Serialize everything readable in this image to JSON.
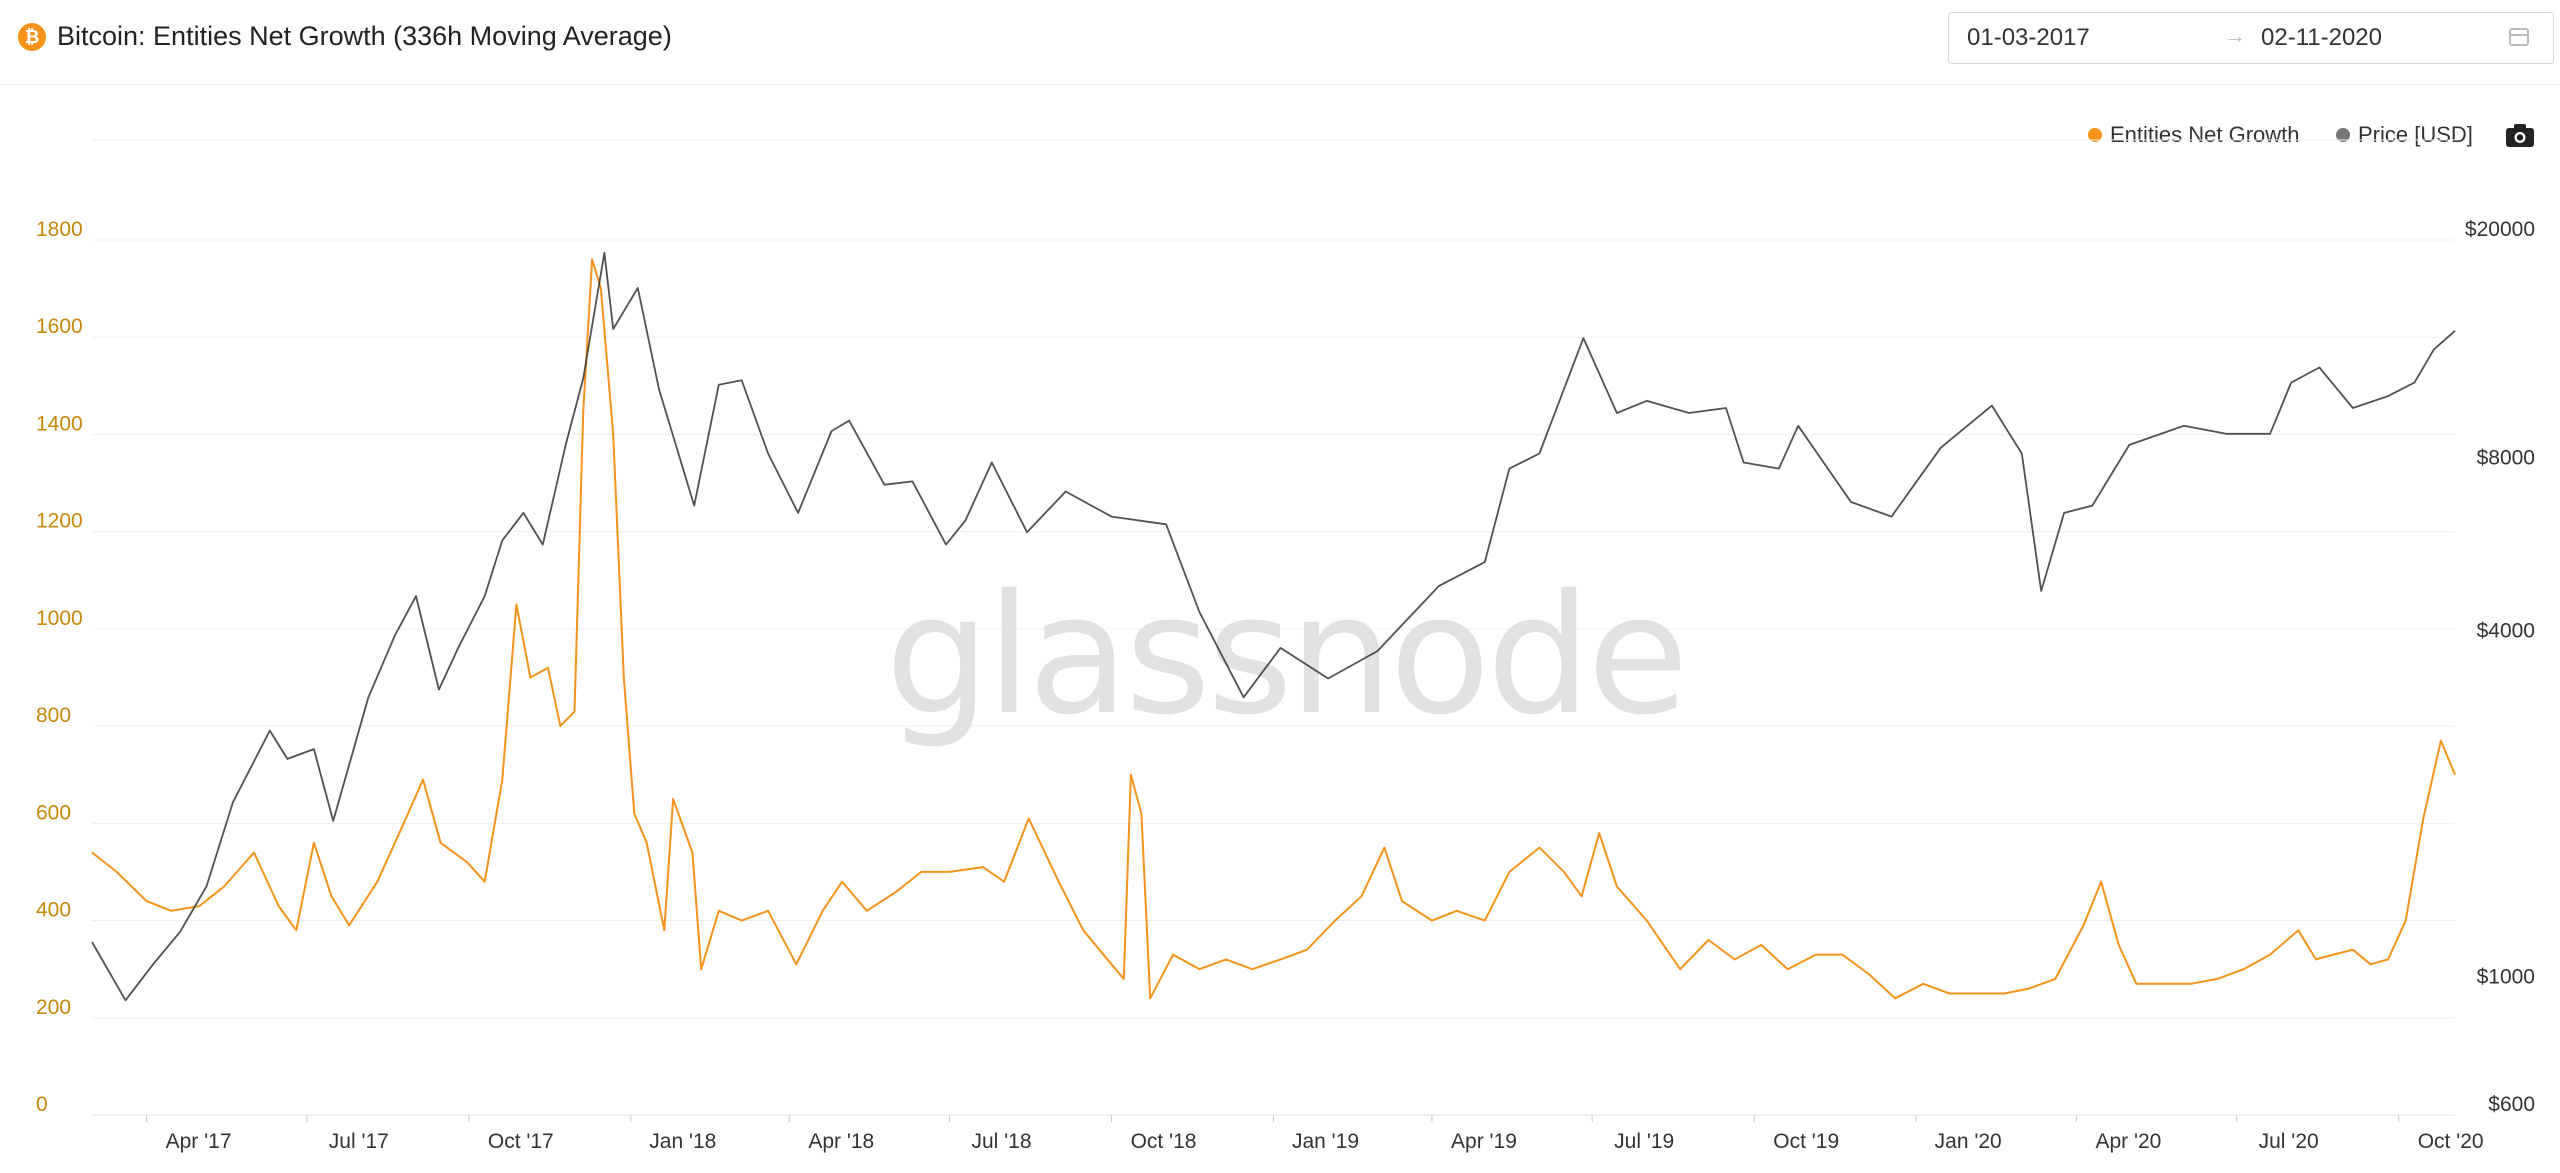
{
  "header": {
    "title": "Bitcoin: Entities Net Growth (336h Moving Average)",
    "coin_icon": "bitcoin-icon",
    "date_start": "01-03-2017",
    "date_separator": "→",
    "date_end": "02-11-2020",
    "calendar_icon": "calendar-icon"
  },
  "legend": {
    "items": [
      {
        "label": "Entities Net Growth",
        "color": "#f7931a"
      },
      {
        "label": "Price [USD]",
        "color": "#777777"
      }
    ],
    "camera_icon": "camera-icon"
  },
  "watermark": "glassnode",
  "chart_data": {
    "type": "line",
    "title": "Bitcoin: Entities Net Growth (336h Moving Average)",
    "x_ticks": [
      "Apr '17",
      "Jul '17",
      "Oct '17",
      "Jan '18",
      "Apr '18",
      "Jul '18",
      "Oct '18",
      "Jan '19",
      "Apr '19",
      "Jul '19",
      "Oct '19",
      "Jan '20",
      "Apr '20",
      "Jul '20",
      "Oct '20"
    ],
    "x_tick_dates": [
      "2017-04-01",
      "2017-07-01",
      "2017-10-01",
      "2018-01-01",
      "2018-04-01",
      "2018-07-01",
      "2018-10-01",
      "2019-01-01",
      "2019-04-01",
      "2019-07-01",
      "2019-10-01",
      "2020-01-01",
      "2020-04-01",
      "2020-07-01",
      "2020-10-01"
    ],
    "xlim": [
      "2017-03-01",
      "2020-11-02"
    ],
    "y_left": {
      "ticks": [
        0,
        200,
        400,
        600,
        800,
        1000,
        1200,
        1400,
        1600,
        1800
      ],
      "ylim": [
        0,
        1800
      ],
      "color": "#c8860a"
    },
    "y_right": {
      "scale": "log",
      "ticks": [
        600,
        1000,
        4000,
        8000,
        20000
      ],
      "tick_labels": [
        "$600",
        "$1000",
        "$4000",
        "$8000",
        "$20000"
      ],
      "ylim": [
        600,
        20000
      ]
    },
    "grid": true,
    "legend_position": "top-right",
    "series": [
      {
        "name": "Entities Net Growth",
        "axis": "left",
        "color": "#f7931a",
        "points": [
          [
            "2017-03-01",
            540
          ],
          [
            "2017-03-15",
            500
          ],
          [
            "2017-04-01",
            440
          ],
          [
            "2017-04-15",
            420
          ],
          [
            "2017-05-01",
            430
          ],
          [
            "2017-05-15",
            470
          ],
          [
            "2017-06-01",
            540
          ],
          [
            "2017-06-15",
            430
          ],
          [
            "2017-06-25",
            380
          ],
          [
            "2017-07-05",
            560
          ],
          [
            "2017-07-15",
            450
          ],
          [
            "2017-07-25",
            390
          ],
          [
            "2017-08-10",
            480
          ],
          [
            "2017-08-25",
            600
          ],
          [
            "2017-09-05",
            690
          ],
          [
            "2017-09-15",
            560
          ],
          [
            "2017-09-30",
            520
          ],
          [
            "2017-10-10",
            480
          ],
          [
            "2017-10-20",
            690
          ],
          [
            "2017-10-28",
            1050
          ],
          [
            "2017-11-05",
            900
          ],
          [
            "2017-11-15",
            920
          ],
          [
            "2017-11-22",
            800
          ],
          [
            "2017-11-30",
            830
          ],
          [
            "2017-12-05",
            1450
          ],
          [
            "2017-12-10",
            1760
          ],
          [
            "2017-12-15",
            1700
          ],
          [
            "2017-12-22",
            1400
          ],
          [
            "2017-12-28",
            900
          ],
          [
            "2018-01-03",
            620
          ],
          [
            "2018-01-10",
            560
          ],
          [
            "2018-01-20",
            380
          ],
          [
            "2018-01-25",
            650
          ],
          [
            "2018-02-05",
            540
          ],
          [
            "2018-02-10",
            300
          ],
          [
            "2018-02-20",
            420
          ],
          [
            "2018-03-05",
            400
          ],
          [
            "2018-03-20",
            420
          ],
          [
            "2018-04-05",
            310
          ],
          [
            "2018-04-20",
            420
          ],
          [
            "2018-05-01",
            480
          ],
          [
            "2018-05-15",
            420
          ],
          [
            "2018-06-01",
            460
          ],
          [
            "2018-06-15",
            500
          ],
          [
            "2018-07-01",
            500
          ],
          [
            "2018-07-20",
            510
          ],
          [
            "2018-08-01",
            480
          ],
          [
            "2018-08-15",
            610
          ],
          [
            "2018-09-01",
            480
          ],
          [
            "2018-09-15",
            380
          ],
          [
            "2018-10-01",
            310
          ],
          [
            "2018-10-08",
            280
          ],
          [
            "2018-10-12",
            700
          ],
          [
            "2018-10-18",
            620
          ],
          [
            "2018-10-23",
            240
          ],
          [
            "2018-11-05",
            330
          ],
          [
            "2018-11-20",
            300
          ],
          [
            "2018-12-05",
            320
          ],
          [
            "2018-12-20",
            300
          ],
          [
            "2019-01-05",
            320
          ],
          [
            "2019-01-20",
            340
          ],
          [
            "2019-02-05",
            400
          ],
          [
            "2019-02-20",
            450
          ],
          [
            "2019-03-05",
            550
          ],
          [
            "2019-03-15",
            440
          ],
          [
            "2019-04-01",
            400
          ],
          [
            "2019-04-15",
            420
          ],
          [
            "2019-05-01",
            400
          ],
          [
            "2019-05-15",
            500
          ],
          [
            "2019-06-01",
            550
          ],
          [
            "2019-06-15",
            500
          ],
          [
            "2019-06-25",
            450
          ],
          [
            "2019-07-05",
            580
          ],
          [
            "2019-07-15",
            470
          ],
          [
            "2019-08-01",
            400
          ],
          [
            "2019-08-20",
            300
          ],
          [
            "2019-09-05",
            360
          ],
          [
            "2019-09-20",
            320
          ],
          [
            "2019-10-05",
            350
          ],
          [
            "2019-10-20",
            300
          ],
          [
            "2019-11-05",
            330
          ],
          [
            "2019-11-20",
            330
          ],
          [
            "2019-12-05",
            290
          ],
          [
            "2019-12-20",
            240
          ],
          [
            "2020-01-05",
            270
          ],
          [
            "2020-01-20",
            250
          ],
          [
            "2020-02-05",
            250
          ],
          [
            "2020-02-20",
            250
          ],
          [
            "2020-03-05",
            260
          ],
          [
            "2020-03-20",
            280
          ],
          [
            "2020-04-05",
            390
          ],
          [
            "2020-04-15",
            480
          ],
          [
            "2020-04-25",
            350
          ],
          [
            "2020-05-05",
            270
          ],
          [
            "2020-05-20",
            270
          ],
          [
            "2020-06-05",
            270
          ],
          [
            "2020-06-20",
            280
          ],
          [
            "2020-07-05",
            300
          ],
          [
            "2020-07-20",
            330
          ],
          [
            "2020-08-05",
            380
          ],
          [
            "2020-08-15",
            320
          ],
          [
            "2020-08-25",
            330
          ],
          [
            "2020-09-05",
            340
          ],
          [
            "2020-09-15",
            310
          ],
          [
            "2020-09-25",
            320
          ],
          [
            "2020-10-05",
            400
          ],
          [
            "2020-10-15",
            610
          ],
          [
            "2020-10-25",
            770
          ],
          [
            "2020-11-02",
            700
          ]
        ]
      },
      {
        "name": "Price [USD]",
        "axis": "right",
        "color": "#333333",
        "points": [
          [
            "2017-03-01",
            1200
          ],
          [
            "2017-03-20",
            950
          ],
          [
            "2017-04-05",
            1100
          ],
          [
            "2017-04-20",
            1250
          ],
          [
            "2017-05-05",
            1500
          ],
          [
            "2017-05-20",
            2100
          ],
          [
            "2017-06-10",
            2800
          ],
          [
            "2017-06-20",
            2500
          ],
          [
            "2017-07-05",
            2600
          ],
          [
            "2017-07-16",
            1950
          ],
          [
            "2017-08-05",
            3200
          ],
          [
            "2017-08-20",
            4100
          ],
          [
            "2017-09-01",
            4800
          ],
          [
            "2017-09-14",
            3300
          ],
          [
            "2017-09-25",
            3900
          ],
          [
            "2017-10-10",
            4800
          ],
          [
            "2017-10-20",
            6000
          ],
          [
            "2017-11-01",
            6700
          ],
          [
            "2017-11-12",
            5900
          ],
          [
            "2017-11-25",
            8800
          ],
          [
            "2017-12-05",
            11500
          ],
          [
            "2017-12-17",
            19000
          ],
          [
            "2017-12-22",
            14000
          ],
          [
            "2018-01-05",
            16500
          ],
          [
            "2018-01-17",
            11000
          ],
          [
            "2018-02-06",
            6900
          ],
          [
            "2018-02-20",
            11200
          ],
          [
            "2018-03-05",
            11400
          ],
          [
            "2018-03-20",
            8500
          ],
          [
            "2018-04-06",
            6700
          ],
          [
            "2018-04-25",
            9300
          ],
          [
            "2018-05-05",
            9700
          ],
          [
            "2018-05-25",
            7500
          ],
          [
            "2018-06-10",
            7600
          ],
          [
            "2018-06-29",
            5900
          ],
          [
            "2018-07-10",
            6500
          ],
          [
            "2018-07-25",
            8200
          ],
          [
            "2018-08-14",
            6200
          ],
          [
            "2018-09-05",
            7300
          ],
          [
            "2018-10-01",
            6600
          ],
          [
            "2018-11-01",
            6400
          ],
          [
            "2018-11-20",
            4500
          ],
          [
            "2018-12-15",
            3200
          ],
          [
            "2019-01-05",
            3900
          ],
          [
            "2019-02-01",
            3450
          ],
          [
            "2019-03-01",
            3850
          ],
          [
            "2019-04-05",
            5000
          ],
          [
            "2019-05-01",
            5500
          ],
          [
            "2019-05-15",
            8000
          ],
          [
            "2019-06-01",
            8500
          ],
          [
            "2019-06-26",
            13500
          ],
          [
            "2019-07-15",
            10000
          ],
          [
            "2019-08-01",
            10500
          ],
          [
            "2019-08-25",
            10000
          ],
          [
            "2019-09-15",
            10200
          ],
          [
            "2019-09-25",
            8200
          ],
          [
            "2019-10-15",
            8000
          ],
          [
            "2019-10-26",
            9500
          ],
          [
            "2019-11-25",
            7000
          ],
          [
            "2019-12-18",
            6600
          ],
          [
            "2020-01-15",
            8700
          ],
          [
            "2020-02-13",
            10300
          ],
          [
            "2020-03-01",
            8500
          ],
          [
            "2020-03-12",
            4900
          ],
          [
            "2020-03-25",
            6700
          ],
          [
            "2020-04-10",
            6900
          ],
          [
            "2020-05-01",
            8800
          ],
          [
            "2020-06-01",
            9500
          ],
          [
            "2020-06-25",
            9200
          ],
          [
            "2020-07-20",
            9200
          ],
          [
            "2020-08-01",
            11300
          ],
          [
            "2020-08-17",
            12000
          ],
          [
            "2020-09-05",
            10200
          ],
          [
            "2020-09-25",
            10700
          ],
          [
            "2020-10-10",
            11300
          ],
          [
            "2020-10-21",
            12900
          ],
          [
            "2020-11-02",
            13900
          ]
        ]
      }
    ]
  }
}
